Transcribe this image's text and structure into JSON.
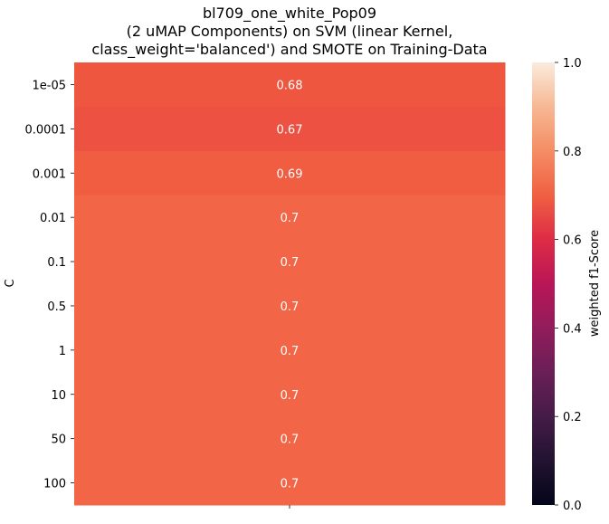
{
  "chart_data": {
    "type": "heatmap",
    "title_lines": [
      "bl709_one_white_Pop09",
      "(2 uMAP Components) on SVM (linear Kernel,",
      "class_weight='balanced') and SMOTE on Training-Data"
    ],
    "ylabel": "C",
    "xlabel": "",
    "rows": [
      "1e-05",
      "0.0001",
      "0.001",
      "0.01",
      "0.1",
      "0.5",
      "1",
      "10",
      "50",
      "100"
    ],
    "columns": [
      ""
    ],
    "values": [
      [
        0.68
      ],
      [
        0.67
      ],
      [
        0.69
      ],
      [
        0.7
      ],
      [
        0.7
      ],
      [
        0.7
      ],
      [
        0.7
      ],
      [
        0.7
      ],
      [
        0.7
      ],
      [
        0.7
      ]
    ],
    "colorbar": {
      "label": "weighted f1-Score",
      "vmin": 0.0,
      "vmax": 1.0,
      "ticks": [
        "0.0",
        "0.2",
        "0.4",
        "0.6",
        "0.8",
        "1.0"
      ],
      "colormap": "rocket"
    },
    "grid": false
  }
}
